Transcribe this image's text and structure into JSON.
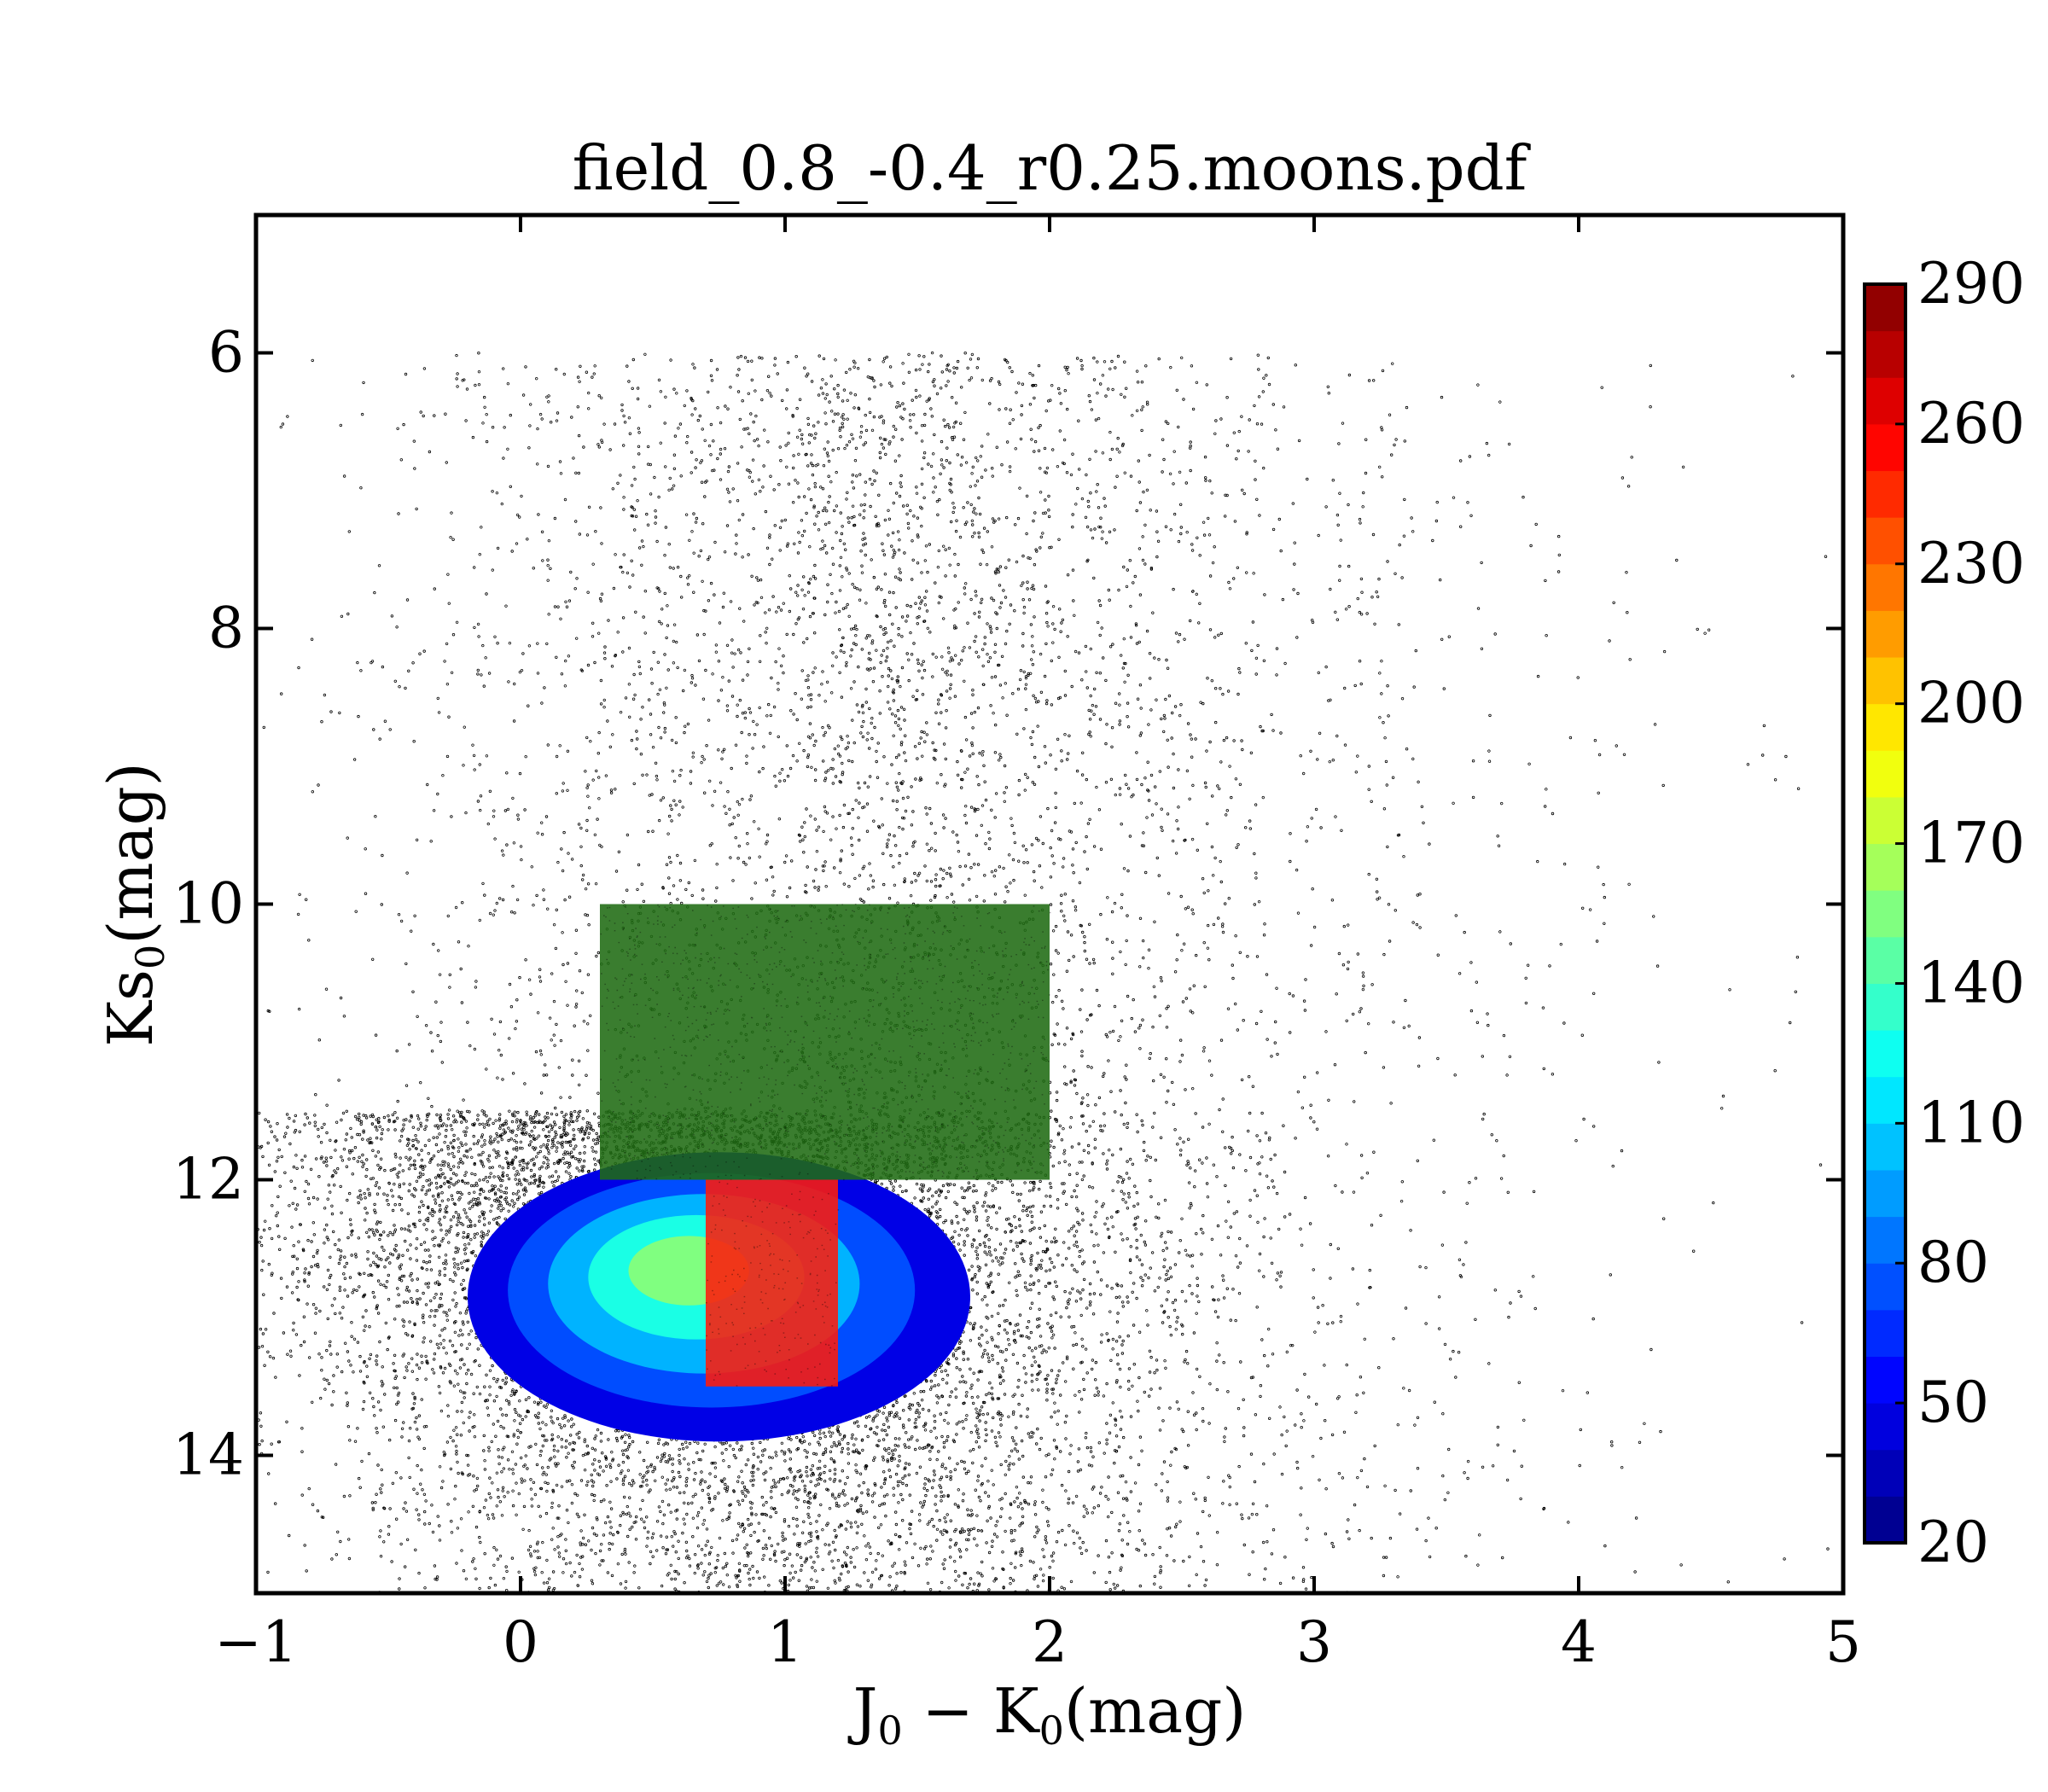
{
  "chart_data": {
    "type": "scatter",
    "title": "field_0.8_-0.4_r0.25.moons.pdf",
    "xlabel": {
      "main": "J",
      "sub": "0",
      "mid": " − K",
      "sub2": "0",
      "tail": "(mag)"
    },
    "ylabel": {
      "main": "Ks",
      "sub": "0",
      "tail": "(mag)"
    },
    "xlim": [
      -1,
      5
    ],
    "ylim": [
      15,
      5
    ],
    "y_inverted": true,
    "x_ticks": [
      -1,
      0,
      1,
      2,
      3,
      4,
      5
    ],
    "x_tick_labels": [
      "−1",
      "0",
      "1",
      "2",
      "3",
      "4",
      "5"
    ],
    "y_ticks": [
      6,
      8,
      10,
      12,
      14
    ],
    "y_tick_labels": [
      "6",
      "8",
      "10",
      "12",
      "14"
    ],
    "grid": false,
    "point_color": "#000000",
    "density_contours": {
      "colormap": "jet",
      "levels": [
        20,
        50,
        80,
        110,
        140,
        170,
        200,
        230,
        260,
        290
      ],
      "extent_x": [
        -0.2,
        1.7
      ],
      "extent_y": [
        11.8,
        13.9
      ],
      "peak_x": 0.6,
      "peak_y": 12.6
    },
    "selection_boxes": [
      {
        "name": "",
        "x": [
          0.3,
          2.0
        ],
        "y": [
          10.0,
          12.0
        ],
        "color": "#1f6b12"
      },
      {
        "name": "",
        "x": [
          0.7,
          1.2
        ],
        "y": [
          12.0,
          13.5
        ],
        "color": "#ff1a0a"
      }
    ],
    "colorbar": {
      "min": 20,
      "max": 290,
      "ticks": [
        20,
        50,
        80,
        110,
        140,
        170,
        200,
        230,
        260,
        290
      ],
      "tick_labels": [
        "20",
        "50",
        "80",
        "110",
        "140",
        "170",
        "200",
        "230",
        "260",
        "290"
      ],
      "label": ""
    }
  }
}
